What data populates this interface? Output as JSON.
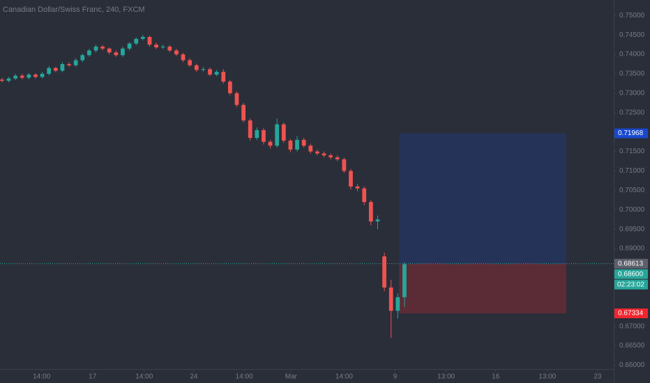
{
  "chart_data": {
    "type": "candlestick",
    "title": "Canadian Dollar/Swiss Franc, 240, FXCM",
    "open": [
      0.7335,
      0.7332,
      0.7338,
      0.7345,
      0.734,
      0.7348,
      0.7342,
      0.735,
      0.7365,
      0.7358,
      0.7375,
      0.7372,
      0.7385,
      0.7398,
      0.741,
      0.742,
      0.7415,
      0.7405,
      0.7398,
      0.7415,
      0.7428,
      0.744,
      0.7445,
      0.7425,
      0.7418,
      0.742,
      0.741,
      0.74,
      0.7385,
      0.7372,
      0.736,
      0.7362,
      0.7348,
      0.7355,
      0.733,
      0.73,
      0.727,
      0.723,
      0.7185,
      0.7205,
      0.7175,
      0.7165,
      0.722,
      0.7178,
      0.7155,
      0.718,
      0.7165,
      0.715,
      0.7145,
      0.714,
      0.7135,
      0.713,
      0.71,
      0.706,
      0.7055,
      0.702,
      0.697,
      0.688,
      0.68,
      0.674,
      0.6775
    ],
    "high": [
      0.734,
      0.7342,
      0.735,
      0.735,
      0.7352,
      0.7352,
      0.7355,
      0.737,
      0.7368,
      0.738,
      0.738,
      0.739,
      0.7402,
      0.7414,
      0.7425,
      0.7424,
      0.7418,
      0.741,
      0.742,
      0.7432,
      0.7444,
      0.745,
      0.7448,
      0.743,
      0.7425,
      0.7424,
      0.7414,
      0.7404,
      0.739,
      0.7376,
      0.7368,
      0.7366,
      0.736,
      0.7362,
      0.7334,
      0.7305,
      0.7275,
      0.7235,
      0.7212,
      0.721,
      0.718,
      0.7235,
      0.7225,
      0.7182,
      0.719,
      0.7185,
      0.717,
      0.7155,
      0.715,
      0.7145,
      0.714,
      0.7134,
      0.7105,
      0.7066,
      0.706,
      0.7025,
      0.6985,
      0.689,
      0.682,
      0.6785,
      0.6865
    ],
    "low": [
      0.7328,
      0.7328,
      0.7334,
      0.7336,
      0.7336,
      0.7338,
      0.7338,
      0.7346,
      0.7354,
      0.7354,
      0.7368,
      0.7368,
      0.738,
      0.7394,
      0.7405,
      0.741,
      0.74,
      0.7394,
      0.7394,
      0.741,
      0.7424,
      0.7436,
      0.742,
      0.7414,
      0.7414,
      0.7406,
      0.7396,
      0.738,
      0.7368,
      0.7355,
      0.7356,
      0.7344,
      0.7344,
      0.7325,
      0.7295,
      0.7265,
      0.7225,
      0.7178,
      0.718,
      0.7168,
      0.7158,
      0.716,
      0.7172,
      0.7148,
      0.715,
      0.716,
      0.7145,
      0.714,
      0.7135,
      0.713,
      0.7125,
      0.7095,
      0.7052,
      0.7048,
      0.7012,
      0.696,
      0.695,
      0.679,
      0.667,
      0.672,
      0.675
    ],
    "close": [
      0.7332,
      0.7338,
      0.7345,
      0.734,
      0.7348,
      0.7342,
      0.735,
      0.7365,
      0.7358,
      0.7375,
      0.7372,
      0.7385,
      0.7398,
      0.741,
      0.742,
      0.7415,
      0.7405,
      0.7398,
      0.7415,
      0.7428,
      0.744,
      0.7445,
      0.7425,
      0.7418,
      0.742,
      0.741,
      0.74,
      0.7385,
      0.7372,
      0.736,
      0.7362,
      0.7348,
      0.7355,
      0.733,
      0.73,
      0.727,
      0.723,
      0.7185,
      0.7205,
      0.7175,
      0.7165,
      0.722,
      0.7178,
      0.7155,
      0.718,
      0.7165,
      0.715,
      0.7145,
      0.714,
      0.7135,
      0.713,
      0.71,
      0.706,
      0.7055,
      0.702,
      0.697,
      0.6975,
      0.68,
      0.674,
      0.6775,
      0.686
    ],
    "up_color": "#26a69a",
    "down_color": "#ef5350",
    "ylim": [
      0.659,
      0.754
    ],
    "yticks": [
      {
        "value": 0.75,
        "label": "0.75000"
      },
      {
        "value": 0.745,
        "label": "0.74500"
      },
      {
        "value": 0.74,
        "label": "0.74000"
      },
      {
        "value": 0.735,
        "label": "0.73500"
      },
      {
        "value": 0.73,
        "label": "0.73000"
      },
      {
        "value": 0.725,
        "label": "0.72500"
      },
      {
        "value": 0.715,
        "label": "0.71500"
      },
      {
        "value": 0.71,
        "label": "0.71000"
      },
      {
        "value": 0.705,
        "label": "0.70500"
      },
      {
        "value": 0.7,
        "label": "0.70000"
      },
      {
        "value": 0.695,
        "label": "0.69500"
      },
      {
        "value": 0.69,
        "label": "0.69000"
      },
      {
        "value": 0.67,
        "label": "0.67000"
      },
      {
        "value": 0.665,
        "label": "0.66500"
      },
      {
        "value": 0.66,
        "label": "0.66000"
      }
    ],
    "xlim": [
      -0.3,
      91.2
    ],
    "xticks": [
      {
        "value": 5.9,
        "label": "14:00"
      },
      {
        "value": 13.5,
        "label": "17"
      },
      {
        "value": 21.2,
        "label": "14:00"
      },
      {
        "value": 28.6,
        "label": "24"
      },
      {
        "value": 36.1,
        "label": "14:00"
      },
      {
        "value": 43.1,
        "label": "Mar"
      },
      {
        "value": 51.0,
        "label": "14:00"
      },
      {
        "value": 58.6,
        "label": "9"
      },
      {
        "value": 66.2,
        "label": "13:00"
      },
      {
        "value": 73.6,
        "label": "16"
      },
      {
        "value": 81.3,
        "label": "13:00"
      },
      {
        "value": 88.8,
        "label": "23"
      }
    ],
    "grid": false,
    "position": {
      "target": 0.71968,
      "entry": 0.68613,
      "stop": 0.67334,
      "target_color": "#1848cc",
      "entry_color": "#5d606b",
      "stop_color": "#f0262f"
    },
    "last_price": {
      "value": 0.686,
      "label": "0.68600",
      "color": "#26a69a"
    },
    "countdown": "02:23:02"
  }
}
